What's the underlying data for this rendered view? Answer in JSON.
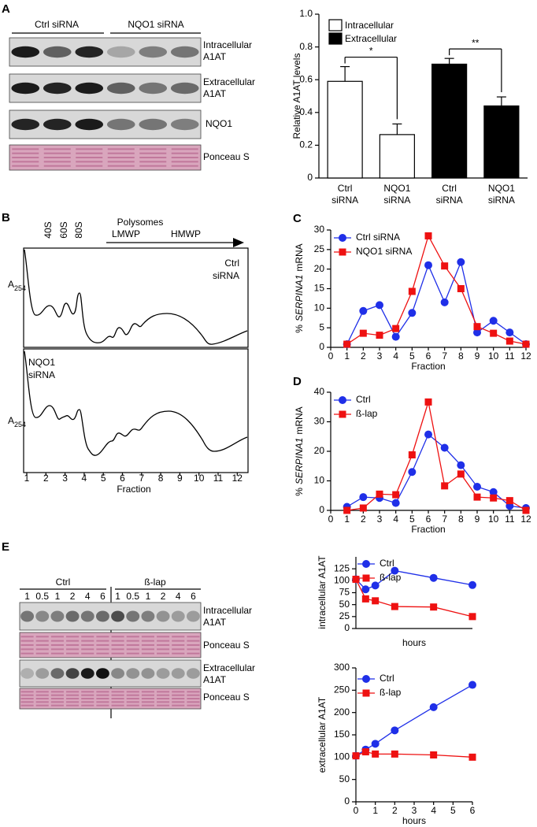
{
  "panel_labels": [
    "A",
    "B",
    "C",
    "D",
    "E"
  ],
  "blot_a": {
    "groups": [
      "Ctrl siRNA",
      "NQO1 siRNA"
    ],
    "rows": [
      [
        "Intracellular",
        "A1AT"
      ],
      [
        "Extracellular",
        "A1AT"
      ],
      [
        "NQO1"
      ],
      [
        "Ponceau S"
      ]
    ]
  },
  "profiles_b": {
    "peaks": [
      "40S",
      "60S",
      "80S"
    ],
    "polysomes": "Polysomes",
    "fractions": [
      "LMWP",
      "HMWP"
    ],
    "conditions": [
      [
        "Ctrl",
        "siRNA"
      ],
      [
        "NQO1",
        "siRNA"
      ]
    ],
    "y_label": {
      "main": "A",
      "sub": "254"
    },
    "xticks": [
      1,
      2,
      3,
      4,
      5,
      6,
      7,
      8,
      9,
      10,
      11,
      12
    ],
    "x_label": "Fraction"
  },
  "blot_e": {
    "groups": [
      "Ctrl",
      "ß-lap"
    ],
    "lanes": [
      [
        "1",
        "0.5",
        "1",
        "2",
        "4",
        "6"
      ],
      [
        "1",
        "0.5",
        "1",
        "2",
        "4",
        "6"
      ]
    ],
    "rows": [
      [
        "Intracellular",
        "A1AT"
      ],
      [
        "Ponceau S"
      ],
      [
        "Extracellular",
        "A1AT"
      ],
      [
        "Ponceau S"
      ]
    ]
  },
  "chart_data": [
    {
      "type": "bar",
      "y_label": "Relative A1AT levels",
      "categories": [
        [
          "Ctrl",
          "siRNA"
        ],
        [
          "NQO1",
          "siRNA"
        ],
        [
          "Ctrl",
          "siRNA"
        ],
        [
          "NQO1",
          "siRNA"
        ]
      ],
      "series": [
        {
          "name": "Intracellular",
          "color": "#ffffff",
          "values": [
            0.59,
            0.265,
            null,
            null
          ],
          "errors": [
            0.09,
            0.065,
            null,
            null
          ]
        },
        {
          "name": "Extracellular",
          "color": "#000000",
          "values": [
            null,
            null,
            0.695,
            0.44
          ],
          "errors": [
            null,
            null,
            0.035,
            0.055
          ]
        }
      ],
      "annotations": [
        "*",
        "**"
      ],
      "ylim": [
        0,
        1
      ],
      "yticks": [
        0,
        0.2,
        0.4,
        0.6,
        0.8,
        {
          "value": 1,
          "label": "1.0"
        }
      ]
    },
    {
      "type": "line",
      "y_label": {
        "prefix": "%",
        "gene": "SERPINA1",
        "suffix": "mRNA"
      },
      "x_label": "Fraction",
      "x": [
        1,
        2,
        3,
        4,
        5,
        6,
        7,
        8,
        9,
        10,
        11,
        12
      ],
      "series": [
        {
          "name": "Ctrl siRNA",
          "color": "#1f2fe8",
          "marker": "circle",
          "values": [
            0.8,
            9.3,
            10.8,
            2.7,
            8.8,
            21,
            11.5,
            21.8,
            3.8,
            6.8,
            3.8,
            0.8
          ]
        },
        {
          "name": "NQO1 siRNA",
          "color": "#ee1111",
          "marker": "square",
          "values": [
            0.8,
            3.6,
            3.1,
            4.8,
            14.3,
            28.5,
            20.8,
            15,
            5.3,
            3.6,
            1.6,
            0.8
          ]
        }
      ],
      "xlim": [
        0,
        12
      ],
      "xticks": [
        0,
        1,
        2,
        3,
        4,
        5,
        6,
        7,
        8,
        9,
        10,
        11,
        12
      ],
      "ylim": [
        0,
        30
      ],
      "yticks": [
        0,
        5,
        10,
        15,
        20,
        25,
        30
      ]
    },
    {
      "type": "line",
      "y_label": {
        "prefix": "%",
        "gene": "SERPINA1",
        "suffix": "mRNA"
      },
      "x_label": "Fraction",
      "x": [
        1,
        2,
        3,
        4,
        5,
        6,
        7,
        8,
        9,
        10,
        11,
        12
      ],
      "series": [
        {
          "name": "Ctrl",
          "color": "#1f2fe8",
          "marker": "circle",
          "values": [
            1.2,
            4.5,
            4.2,
            2.5,
            13,
            25.7,
            21.2,
            15.3,
            8,
            6.2,
            1.5,
            0.8
          ]
        },
        {
          "name": "ß-lap",
          "color": "#ee1111",
          "marker": "square",
          "values": [
            0,
            0.8,
            5.5,
            5.3,
            18.8,
            36.7,
            8.3,
            12.3,
            4.5,
            4.2,
            3.3,
            0
          ]
        }
      ],
      "xlim": [
        0,
        12
      ],
      "xticks": [
        0,
        1,
        2,
        3,
        4,
        5,
        6,
        7,
        8,
        9,
        10,
        11,
        12
      ],
      "ylim": [
        0,
        40
      ],
      "yticks": [
        0,
        10,
        20,
        30,
        40
      ]
    },
    {
      "type": "line",
      "y_label": "intracellular A1AT",
      "x_label": "hours",
      "x": [
        0,
        0.5,
        1,
        2,
        4,
        6
      ],
      "series": [
        {
          "name": "Ctrl",
          "color": "#1f2fe8",
          "marker": "circle",
          "values": [
            103,
            82,
            90,
            121,
            106,
            91
          ]
        },
        {
          "name": "ß-lap",
          "color": "#ee1111",
          "marker": "square",
          "values": [
            103,
            62,
            58,
            46,
            45,
            25
          ]
        }
      ],
      "xlim": [
        0,
        6
      ],
      "ylim": [
        0,
        150
      ],
      "yticks": [
        0,
        25,
        50,
        75,
        100,
        125
      ]
    },
    {
      "type": "line",
      "y_label": "extracellular A1AT",
      "x_label": "hours",
      "x": [
        0,
        0.5,
        1,
        2,
        4,
        6
      ],
      "series": [
        {
          "name": "Ctrl",
          "color": "#1f2fe8",
          "marker": "circle",
          "values": [
            103,
            117,
            130,
            160,
            212,
            262
          ]
        },
        {
          "name": "ß-lap",
          "color": "#ee1111",
          "marker": "square",
          "values": [
            103,
            112,
            107,
            107,
            105,
            100
          ]
        }
      ],
      "xlim": [
        0,
        6
      ],
      "xticks": [
        0,
        1,
        2,
        3,
        4,
        5,
        6
      ],
      "ylim": [
        0,
        300
      ],
      "yticks": [
        0,
        50,
        100,
        150,
        200,
        250,
        300
      ]
    }
  ]
}
